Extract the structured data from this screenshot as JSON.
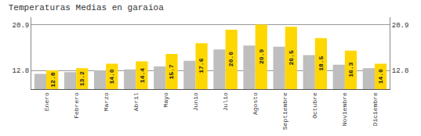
{
  "chart_data": {
    "type": "bar",
    "title": "Temperaturas Medias en garaioa",
    "categories": [
      "Enero",
      "Febrero",
      "Marzo",
      "Abril",
      "Mayo",
      "Junio",
      "Julio",
      "Agosto",
      "Septiembre",
      "Octubre",
      "Noviembre",
      "Diciembre"
    ],
    "series": [
      {
        "color": "#BEBEBE",
        "values": [
          12.2,
          12.5,
          12.8,
          13.0,
          13.5,
          14.5,
          16.5,
          17.2,
          17.0,
          15.5,
          13.8,
          13.2
        ]
      },
      {
        "color": "#FFD700",
        "values": [
          12.8,
          13.2,
          14.0,
          14.4,
          15.7,
          17.6,
          20.0,
          20.9,
          20.5,
          18.5,
          16.3,
          14.0
        ],
        "data_labels": true,
        "value_labels": [
          "12.8",
          "13.2",
          "14.0",
          "14.4",
          "15.7",
          "17.6",
          "20.0",
          "20.9",
          "20.5",
          "18.5",
          "16.3",
          "14.0"
        ]
      }
    ],
    "ylim": [
      9.5,
      22.2
    ],
    "yticks": [
      12.8,
      20.9
    ],
    "y2lim": [
      9.5,
      22.2
    ],
    "y2ticks": [
      12.8,
      20.9
    ],
    "grid": true
  }
}
